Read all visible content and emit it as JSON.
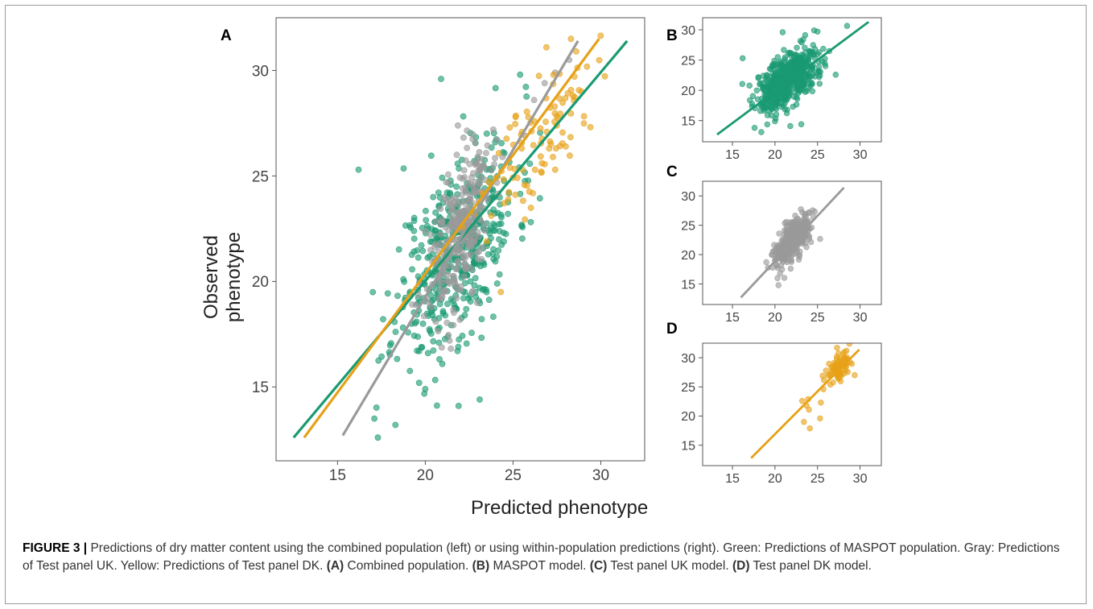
{
  "figure": {
    "panel_labels": [
      "A",
      "B",
      "C",
      "D"
    ],
    "colors": {
      "green": "#1a9a72",
      "gray": "#9a9a9a",
      "yellow": "#e6a117"
    }
  },
  "caption": {
    "label": "FIGURE 3 |",
    "text_1": " Predictions of dry matter content using the combined population (left) or using within-population predictions (right). Green: Predictions of MASPOT population. Gray: Predictions of Test panel UK. Yellow: Predictions of Test panel DK. ",
    "ref_a": "(A)",
    "text_a": " Combined population. ",
    "ref_b": "(B)",
    "text_b": " MASPOT model. ",
    "ref_c": "(C)",
    "text_c": " Test panel UK model. ",
    "ref_d": "(D)",
    "text_d": " Test panel DK model."
  },
  "chart_data": [
    {
      "panel": "A",
      "type": "scatter",
      "xlabel": "Predicted phenotype",
      "ylabel": "Observed phenotype",
      "xlim": [
        11.5,
        32.5
      ],
      "ylim": [
        11.5,
        32.5
      ],
      "xticks": [
        15,
        20,
        25,
        30
      ],
      "yticks": [
        15,
        20,
        25,
        30
      ],
      "grid": false,
      "series": [
        {
          "color": "green",
          "seed": 11,
          "n": 480,
          "center": [
            21.8,
            21.6
          ],
          "spread": [
            1.7,
            2.6
          ],
          "corr": 0.55,
          "extra_points": [
            [
              16.2,
              25.3
            ],
            [
              20.9,
              29.6
            ],
            [
              17.3,
              12.6
            ],
            [
              18.3,
              13.2
            ],
            [
              21.9,
              14.1
            ],
            [
              23.1,
              14.4
            ],
            [
              20.0,
              14.9
            ],
            [
              17.1,
              13.5
            ],
            [
              24.1,
              19.9
            ],
            [
              25.4,
              29.8
            ]
          ],
          "fit": [
            [
              12.5,
              12.6
            ],
            [
              31.5,
              31.4
            ]
          ]
        },
        {
          "color": "gray",
          "seed": 23,
          "n": 300,
          "center": [
            21.9,
            22.3
          ],
          "spread": [
            0.9,
            2.0
          ],
          "corr": 0.55,
          "extra_points": [
            [
              26.2,
              28.6
            ],
            [
              27.4,
              29.9
            ],
            [
              25.7,
              26.9
            ],
            [
              24.4,
              25.9
            ],
            [
              28.2,
              30.5
            ],
            [
              26.8,
              29.4
            ]
          ],
          "fit": [
            [
              15.3,
              12.7
            ],
            [
              28.7,
              31.4
            ]
          ]
        },
        {
          "color": "yellow",
          "seed": 37,
          "n": 90,
          "center": [
            26.8,
            27.0
          ],
          "spread": [
            1.5,
            1.9
          ],
          "corr": 0.75,
          "extra_points": [
            [
              28.3,
              31.5
            ],
            [
              26.9,
              31.1
            ],
            [
              27.4,
              25.3
            ],
            [
              26.6,
              25.2
            ],
            [
              28.0,
              26.4
            ],
            [
              28.9,
              29.0
            ],
            [
              27.3,
              29.8
            ],
            [
              28.6,
              30.9
            ],
            [
              24.3,
              19.5
            ],
            [
              22.8,
              23.2
            ],
            [
              22.1,
              22.6
            ],
            [
              23.5,
              21.9
            ]
          ],
          "fit": [
            [
              13.1,
              12.6
            ],
            [
              29.9,
              31.5
            ]
          ]
        }
      ]
    },
    {
      "panel": "B",
      "type": "scatter",
      "xlim": [
        11.5,
        32.5
      ],
      "ylim": [
        11.5,
        32.0
      ],
      "xticks": [
        15,
        20,
        25,
        30
      ],
      "yticks": [
        15,
        20,
        25,
        30
      ],
      "grid": false,
      "series": [
        {
          "color": "green",
          "seed": 51,
          "n": 560,
          "center": [
            21.6,
            21.7
          ],
          "spread": [
            1.8,
            2.6
          ],
          "corr": 0.6,
          "extra_points": [
            [
              16.2,
              25.3
            ],
            [
              20.9,
              29.6
            ],
            [
              17.6,
              13.8
            ],
            [
              18.4,
              13.1
            ],
            [
              21.8,
              14.1
            ],
            [
              23.1,
              14.4
            ],
            [
              20.0,
              14.9
            ],
            [
              24.6,
              29.9
            ],
            [
              25.0,
              29.7
            ]
          ],
          "fit": [
            [
              13.2,
              12.7
            ],
            [
              31.0,
              31.3
            ]
          ]
        }
      ]
    },
    {
      "panel": "C",
      "type": "scatter",
      "xlim": [
        11.5,
        32.5
      ],
      "ylim": [
        11.5,
        32.5
      ],
      "xticks": [
        15,
        20,
        25,
        30
      ],
      "yticks": [
        15,
        20,
        25,
        30
      ],
      "grid": false,
      "series": [
        {
          "color": "gray",
          "seed": 67,
          "n": 320,
          "center": [
            21.9,
            22.0
          ],
          "spread": [
            1.0,
            2.0
          ],
          "corr": 0.6,
          "extra_points": [
            [
              20.3,
              16.0
            ],
            [
              23.6,
              26.9
            ],
            [
              24.0,
              27.2
            ],
            [
              20.6,
              16.8
            ]
          ],
          "fit": [
            [
              16.0,
              12.7
            ],
            [
              28.1,
              31.4
            ]
          ]
        }
      ]
    },
    {
      "panel": "D",
      "type": "scatter",
      "xlim": [
        11.5,
        32.5
      ],
      "ylim": [
        11.5,
        32.5
      ],
      "xticks": [
        15,
        20,
        25,
        30
      ],
      "yticks": [
        15,
        20,
        25,
        30
      ],
      "grid": false,
      "series": [
        {
          "color": "yellow",
          "seed": 83,
          "n": 70,
          "center": [
            27.7,
            28.4
          ],
          "spread": [
            0.7,
            1.4
          ],
          "corr": 0.4,
          "extra_points": [
            [
              23.2,
              22.6
            ],
            [
              23.7,
              21.8
            ],
            [
              23.9,
              22.9
            ],
            [
              23.4,
              19.0
            ],
            [
              24.1,
              17.9
            ],
            [
              24.0,
              21.1
            ],
            [
              25.3,
              19.6
            ],
            [
              25.4,
              22.3
            ],
            [
              25.7,
              24.6
            ],
            [
              25.6,
              26.9
            ],
            [
              26.0,
              27.8
            ],
            [
              27.3,
              31.7
            ],
            [
              28.4,
              31.2
            ],
            [
              26.5,
              25.4
            ],
            [
              27.5,
              26.4
            ]
          ],
          "fit": [
            [
              17.2,
              12.8
            ],
            [
              29.9,
              31.4
            ]
          ]
        }
      ]
    }
  ]
}
